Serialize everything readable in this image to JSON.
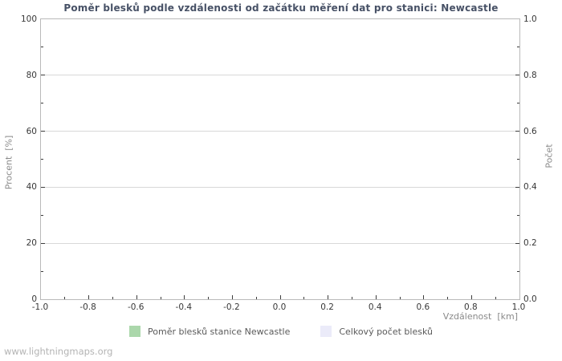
{
  "title": "Poměr blesků podle vzdálenosti od začátku měření dat pro stanici: Newcastle",
  "watermark": "www.lightningmaps.org",
  "colors": {
    "title": "#475166",
    "grid": "#d8d8d8",
    "plot_border": "#b9b9b9",
    "tick_mark": "#3c3c3c",
    "tick_text": "#383838",
    "axis_label_text": "#8a8a8a",
    "legend_text": "#5a5a5a",
    "watermark_text": "#b4b4b4",
    "series_ratio": "#abd7ab",
    "series_total": "#ebebf9"
  },
  "chart_data": {
    "type": "bar",
    "title": "Poměr blesků podle vzdálenosti od začátku měření dat pro stanici: Newcastle",
    "grid": true,
    "x_axis": {
      "label": "Vzdálenost  [km]",
      "range": [
        -1.0,
        1.0
      ],
      "tick_labels": [
        "-1.0",
        "-0.8",
        "-0.6",
        "-0.4",
        "-0.2",
        "0.0",
        "0.2",
        "0.4",
        "0.6",
        "0.8",
        "1.0"
      ],
      "minor_ticks": [
        -0.9,
        -0.7,
        -0.5,
        -0.3,
        -0.1,
        0.1,
        0.3,
        0.5,
        0.7,
        0.9
      ]
    },
    "y_axis_left": {
      "label": "Procent  [%]",
      "range": [
        0,
        100
      ],
      "tick_labels": [
        "0",
        "20",
        "40",
        "60",
        "80",
        "100"
      ],
      "minor_ticks": [
        10,
        30,
        50,
        70,
        90
      ]
    },
    "y_axis_right": {
      "label": "Počet",
      "range": [
        0.0,
        1.0
      ],
      "tick_labels": [
        "0.0",
        "0.2",
        "0.4",
        "0.6",
        "0.8",
        "1.0"
      ],
      "minor_ticks": [
        0.1,
        0.3,
        0.5,
        0.7,
        0.9
      ]
    },
    "legend": [
      {
        "label": "Poměr blesků stanice Newcastle",
        "color": "#abd7ab"
      },
      {
        "label": "Celkový počet blesků",
        "color": "#ebebf9"
      }
    ],
    "series": [
      {
        "name": "Poměr blesků stanice Newcastle",
        "axis": "left",
        "values": []
      },
      {
        "name": "Celkový počet blesků",
        "axis": "right",
        "values": []
      }
    ]
  }
}
